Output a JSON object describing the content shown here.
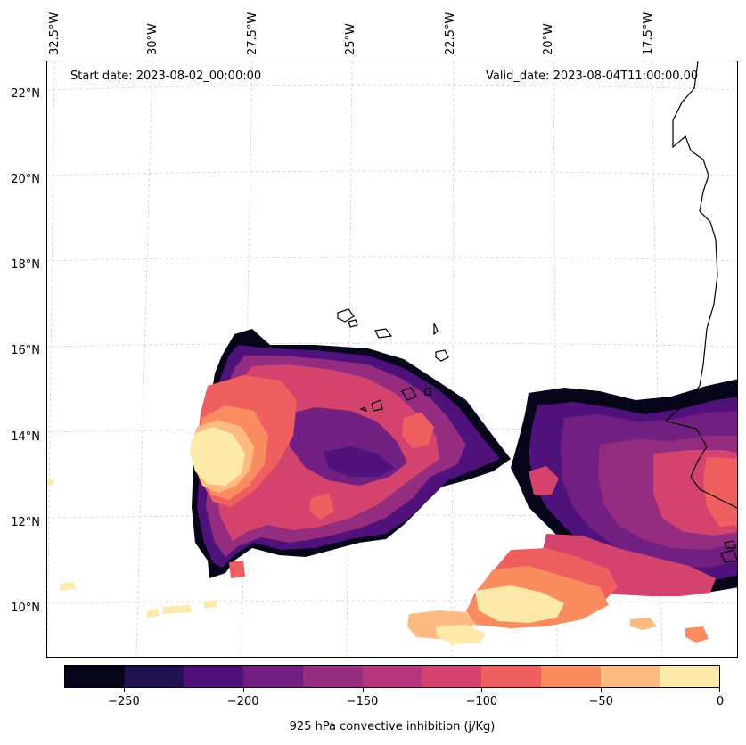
{
  "header": {
    "start_date": "Start date: 2023-08-02_00:00:00",
    "valid_date": "Valid_date: 2023-08-04T11:00:00.00"
  },
  "longitude_labels": [
    "32.5°W",
    "30°W",
    "27.5°W",
    "25°W",
    "22.5°W",
    "20°W",
    "17.5°W"
  ],
  "latitude_labels": [
    "22°N",
    "20°N",
    "18°N",
    "16°N",
    "14°N",
    "12°N",
    "10°N"
  ],
  "colorbar": {
    "title": "925 hPa convective inhibition (j/Kg)",
    "tick_labels": [
      "−250",
      "−200",
      "−150",
      "−100",
      "−50",
      "0"
    ],
    "levels": [
      -275,
      -250,
      -225,
      -200,
      -175,
      -150,
      -125,
      -100,
      -75,
      -50,
      -25,
      0
    ],
    "colors": [
      "#06051a",
      "#21114e",
      "#4f127b",
      "#711f81",
      "#942c80",
      "#b5367a",
      "#d3436e",
      "#ef5f5f",
      "#fa8c5f",
      "#febb81",
      "#fde9a9"
    ]
  }
}
